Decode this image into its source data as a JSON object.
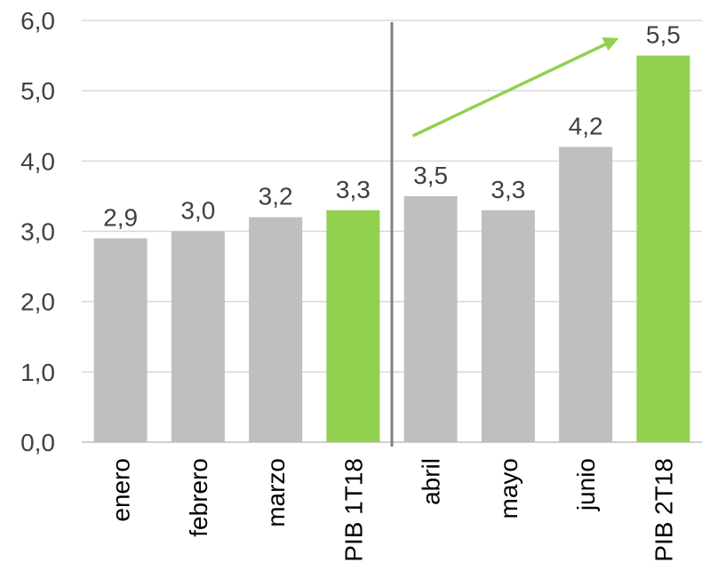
{
  "chart_data": {
    "type": "bar",
    "categories": [
      "enero",
      "febrero",
      "marzo",
      "PIB 1T18",
      "abril",
      "mayo",
      "junio",
      "PIB 2T18"
    ],
    "values": [
      2.9,
      3.0,
      3.2,
      3.3,
      3.5,
      3.3,
      4.2,
      5.5
    ],
    "value_labels": [
      "2,9",
      "3,0",
      "3,2",
      "3,3",
      "3,5",
      "3,3",
      "4,2",
      "5,5"
    ],
    "highlighted": [
      false,
      false,
      false,
      true,
      false,
      false,
      false,
      true
    ],
    "y_ticks": [
      "0,0",
      "1,0",
      "2,0",
      "3,0",
      "4,0",
      "5,0",
      "6,0"
    ],
    "ylim": [
      0,
      6
    ],
    "grid": true,
    "separator_after_category": "PIB 1T18",
    "trend_arrow": {
      "from_category": "abril",
      "to_category": "PIB 2T18"
    },
    "colors": {
      "bar": "#bfbfbf",
      "highlight": "#92d050",
      "separator": "#808080",
      "arrow": "#92d050"
    }
  }
}
